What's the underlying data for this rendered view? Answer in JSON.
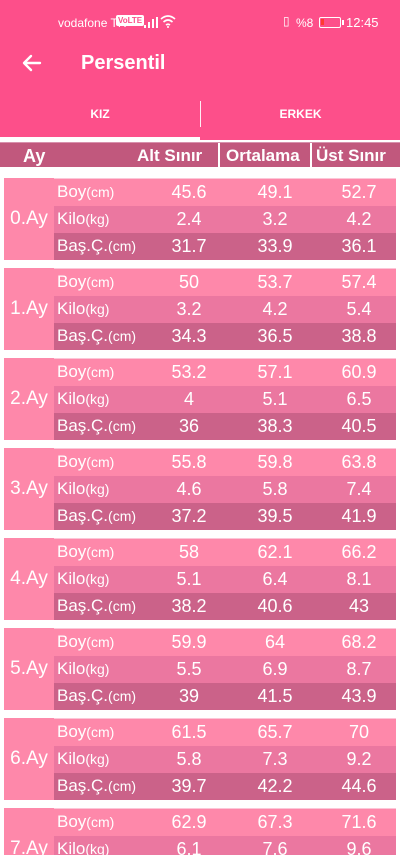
{
  "status_bar": {
    "carrier": "vodafone TR",
    "volte": "VoLTE",
    "battery": "%8",
    "time": "12:45"
  },
  "app_bar": {
    "title": "Persentil",
    "back_icon": "arrow-left-icon"
  },
  "tabs": [
    {
      "label": "KIZ",
      "selected": true
    },
    {
      "label": "ERKEK",
      "selected": false
    }
  ],
  "table_header": {
    "month": "Ay",
    "lower": "Alt Sınır",
    "average": "Ortalama",
    "upper": "Üst Sınır"
  },
  "row_labels": [
    {
      "name": "Boy",
      "unit": "(cm)"
    },
    {
      "name": "Kilo",
      "unit": "(kg)"
    },
    {
      "name": "Baş.Ç.",
      "unit": "(cm)"
    }
  ],
  "months": [
    {
      "label": "0.Ay",
      "rows": [
        [
          "45.6",
          "49.1",
          "52.7"
        ],
        [
          "2.4",
          "3.2",
          "4.2"
        ],
        [
          "31.7",
          "33.9",
          "36.1"
        ]
      ]
    },
    {
      "label": "1.Ay",
      "rows": [
        [
          "50",
          "53.7",
          "57.4"
        ],
        [
          "3.2",
          "4.2",
          "5.4"
        ],
        [
          "34.3",
          "36.5",
          "38.8"
        ]
      ]
    },
    {
      "label": "2.Ay",
      "rows": [
        [
          "53.2",
          "57.1",
          "60.9"
        ],
        [
          "4",
          "5.1",
          "6.5"
        ],
        [
          "36",
          "38.3",
          "40.5"
        ]
      ]
    },
    {
      "label": "3.Ay",
      "rows": [
        [
          "55.8",
          "59.8",
          "63.8"
        ],
        [
          "4.6",
          "5.8",
          "7.4"
        ],
        [
          "37.2",
          "39.5",
          "41.9"
        ]
      ]
    },
    {
      "label": "4.Ay",
      "rows": [
        [
          "58",
          "62.1",
          "66.2"
        ],
        [
          "5.1",
          "6.4",
          "8.1"
        ],
        [
          "38.2",
          "40.6",
          "43"
        ]
      ]
    },
    {
      "label": "5.Ay",
      "rows": [
        [
          "59.9",
          "64",
          "68.2"
        ],
        [
          "5.5",
          "6.9",
          "8.7"
        ],
        [
          "39",
          "41.5",
          "43.9"
        ]
      ]
    },
    {
      "label": "6.Ay",
      "rows": [
        [
          "61.5",
          "65.7",
          "70"
        ],
        [
          "5.8",
          "7.3",
          "9.2"
        ],
        [
          "39.7",
          "42.2",
          "44.6"
        ]
      ]
    },
    {
      "label": "7.Ay",
      "rows": [
        [
          "62.9",
          "67.3",
          "71.6"
        ],
        [
          "6.1",
          "7.6",
          "9.6"
        ],
        [
          "",
          "",
          ""
        ]
      ]
    }
  ]
}
